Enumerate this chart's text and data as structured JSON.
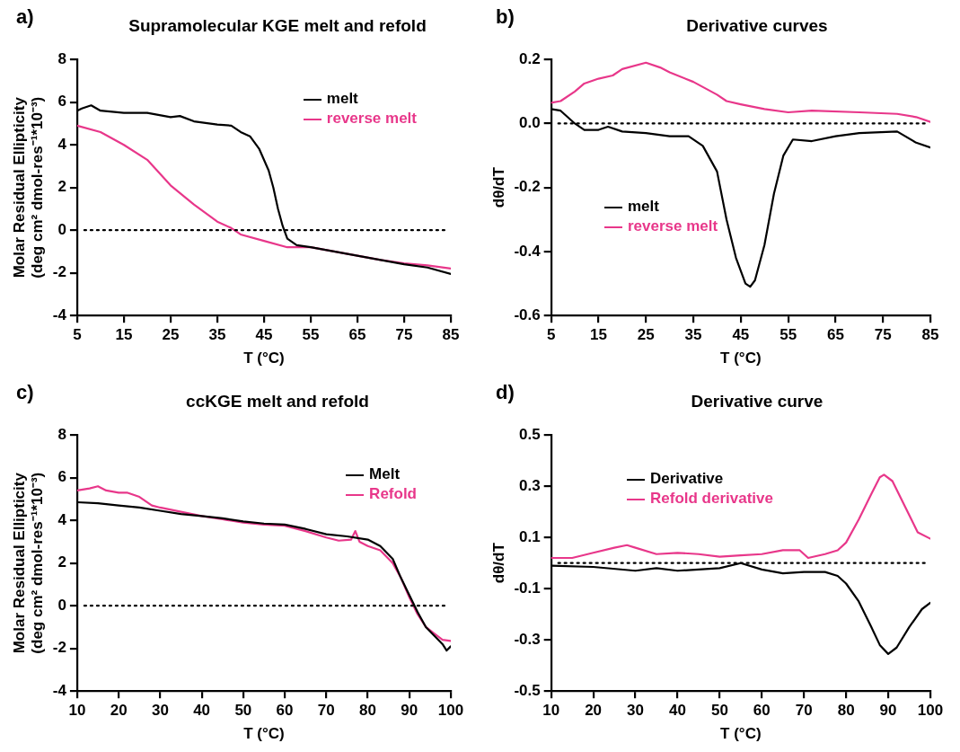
{
  "chart_data": [
    {
      "type": "line",
      "title": "Supramolecular KGE melt and refold",
      "xlabel": "T (°C)",
      "ylabel": "Molar Residual Ellipticity\n(deg cm² dmol-res⁻¹*10⁻³)",
      "annotations": [
        "a)"
      ],
      "xlim": [
        5,
        85
      ],
      "xticks": [
        5,
        15,
        25,
        35,
        45,
        55,
        65,
        75,
        85
      ],
      "ylim": [
        -4,
        8
      ],
      "yticks": [
        -4,
        -2,
        0,
        2,
        4,
        6,
        8
      ],
      "grid": false,
      "legend": "top right",
      "marker": "none",
      "line_style": "solid",
      "ref_lines": [
        {
          "axis": "y",
          "value": 0,
          "color": "#000000",
          "line_style": "dotted"
        }
      ],
      "series": [
        {
          "name": "melt",
          "color": "#000000",
          "x": [
            5,
            6,
            8,
            10,
            15,
            20,
            25,
            27,
            30,
            35,
            38,
            40,
            42,
            44,
            46,
            47,
            48,
            49,
            50,
            52,
            55,
            60,
            65,
            70,
            75,
            80,
            85
          ],
          "values": [
            5.6,
            5.7,
            5.85,
            5.6,
            5.5,
            5.5,
            5.3,
            5.35,
            5.1,
            4.95,
            4.9,
            4.6,
            4.4,
            3.8,
            2.8,
            2.0,
            1.0,
            0.2,
            -0.4,
            -0.7,
            -0.8,
            -1.0,
            -1.2,
            -1.4,
            -1.6,
            -1.75,
            -2.05
          ]
        },
        {
          "name": "reverse melt",
          "color": "#e8378a",
          "x": [
            5,
            10,
            15,
            20,
            25,
            30,
            35,
            38,
            40,
            45,
            50,
            55,
            60,
            65,
            70,
            75,
            80,
            85
          ],
          "values": [
            4.9,
            4.6,
            4.0,
            3.3,
            2.1,
            1.2,
            0.4,
            0.1,
            -0.2,
            -0.5,
            -0.8,
            -0.8,
            -1.0,
            -1.2,
            -1.4,
            -1.55,
            -1.65,
            -1.8
          ]
        }
      ]
    },
    {
      "type": "line",
      "title": "Derivative curves",
      "xlabel": "T (°C)",
      "ylabel": "dθ/dT",
      "annotations": [
        "b)"
      ],
      "xlim": [
        5,
        85
      ],
      "xticks": [
        5,
        15,
        25,
        35,
        45,
        55,
        65,
        75,
        85
      ],
      "ylim": [
        -0.6,
        0.2
      ],
      "yticks": [
        -0.6,
        -0.4,
        -0.2,
        {
          "value": 0,
          "label": "0.0"
        },
        0.2
      ],
      "grid": false,
      "legend": "left",
      "marker": "none",
      "line_style": "solid",
      "ref_lines": [
        {
          "axis": "y",
          "value": 0,
          "color": "#000000",
          "line_style": "dotted"
        }
      ],
      "series": [
        {
          "name": "melt",
          "color": "#000000",
          "x": [
            5,
            7,
            10,
            12,
            15,
            17,
            20,
            25,
            30,
            34,
            37,
            40,
            42,
            44,
            46,
            47,
            48,
            50,
            52,
            54,
            56,
            60,
            65,
            70,
            78,
            82,
            85
          ],
          "values": [
            0.045,
            0.04,
            0.0,
            -0.02,
            -0.02,
            -0.01,
            -0.025,
            -0.03,
            -0.04,
            -0.04,
            -0.07,
            -0.15,
            -0.3,
            -0.42,
            -0.5,
            -0.51,
            -0.49,
            -0.38,
            -0.22,
            -0.1,
            -0.05,
            -0.055,
            -0.04,
            -0.03,
            -0.025,
            -0.06,
            -0.075
          ]
        },
        {
          "name": "reverse melt",
          "color": "#e8378a",
          "x": [
            5,
            7,
            10,
            12,
            15,
            18,
            20,
            25,
            28,
            30,
            35,
            40,
            42,
            45,
            50,
            55,
            60,
            70,
            78,
            82,
            85
          ],
          "values": [
            0.065,
            0.07,
            0.1,
            0.125,
            0.14,
            0.15,
            0.17,
            0.19,
            0.175,
            0.16,
            0.13,
            0.09,
            0.07,
            0.06,
            0.045,
            0.035,
            0.04,
            0.035,
            0.03,
            0.02,
            0.005
          ]
        }
      ]
    },
    {
      "type": "line",
      "title": "ccKGE melt and refold",
      "xlabel": "T (°C)",
      "ylabel": "Molar Residual Ellipticity\n(deg cm² dmol-res⁻¹*10⁻³)",
      "annotations": [
        "c)"
      ],
      "xlim": [
        10,
        100
      ],
      "xticks": [
        10,
        20,
        30,
        40,
        50,
        60,
        70,
        80,
        90,
        100
      ],
      "ylim": [
        -4,
        8
      ],
      "yticks": [
        -4,
        -2,
        0,
        2,
        4,
        6,
        8
      ],
      "grid": false,
      "legend": "top right",
      "marker": "none",
      "line_style": "solid",
      "ref_lines": [
        {
          "axis": "y",
          "value": 0,
          "color": "#000000",
          "line_style": "dotted"
        }
      ],
      "series": [
        {
          "name": "Melt",
          "color": "#000000",
          "x": [
            10,
            15,
            20,
            25,
            30,
            35,
            40,
            45,
            50,
            55,
            60,
            65,
            70,
            75,
            80,
            83,
            86,
            88,
            90,
            92,
            94,
            96,
            98,
            99,
            100
          ],
          "values": [
            4.85,
            4.8,
            4.7,
            4.6,
            4.45,
            4.3,
            4.2,
            4.1,
            3.95,
            3.85,
            3.8,
            3.6,
            3.35,
            3.25,
            3.1,
            2.8,
            2.2,
            1.3,
            0.5,
            -0.3,
            -1.0,
            -1.4,
            -1.8,
            -2.1,
            -1.9
          ]
        },
        {
          "name": "Refold",
          "color": "#e8378a",
          "x": [
            10,
            13,
            15,
            17,
            20,
            22,
            25,
            28,
            30,
            35,
            40,
            45,
            50,
            55,
            60,
            65,
            70,
            73,
            76,
            77,
            78,
            80,
            83,
            86,
            88,
            90,
            92,
            94,
            96,
            98,
            100
          ],
          "values": [
            5.4,
            5.5,
            5.6,
            5.4,
            5.3,
            5.3,
            5.1,
            4.7,
            4.6,
            4.4,
            4.2,
            4.05,
            3.9,
            3.8,
            3.75,
            3.5,
            3.2,
            3.05,
            3.1,
            3.5,
            3.0,
            2.8,
            2.6,
            2.0,
            1.3,
            0.4,
            -0.4,
            -1.0,
            -1.3,
            -1.6,
            -1.65
          ]
        }
      ]
    },
    {
      "type": "line",
      "title": "Derivative curve",
      "xlabel": "T (°C)",
      "ylabel": "dθ/dT",
      "annotations": [
        "d)"
      ],
      "xlim": [
        10,
        100
      ],
      "xticks": [
        10,
        20,
        30,
        40,
        50,
        60,
        70,
        80,
        90,
        100
      ],
      "ylim": [
        -0.5,
        0.5
      ],
      "yticks": [
        -0.5,
        -0.3,
        -0.1,
        0.1,
        0.3,
        0.5
      ],
      "grid": false,
      "legend": "top left",
      "marker": "none",
      "line_style": "solid",
      "ref_lines": [
        {
          "axis": "y",
          "value": 0,
          "color": "#000000",
          "line_style": "dotted"
        }
      ],
      "series": [
        {
          "name": "Derivative",
          "color": "#000000",
          "x": [
            10,
            20,
            30,
            35,
            40,
            50,
            55,
            60,
            65,
            70,
            75,
            78,
            80,
            83,
            86,
            88,
            90,
            92,
            95,
            98,
            100
          ],
          "values": [
            -0.01,
            -0.015,
            -0.03,
            -0.02,
            -0.03,
            -0.02,
            0.0,
            -0.025,
            -0.04,
            -0.035,
            -0.035,
            -0.05,
            -0.08,
            -0.15,
            -0.25,
            -0.32,
            -0.355,
            -0.33,
            -0.25,
            -0.18,
            -0.155
          ]
        },
        {
          "name": "Refold derivative",
          "color": "#e8378a",
          "x": [
            10,
            15,
            20,
            25,
            28,
            30,
            35,
            40,
            45,
            50,
            55,
            60,
            65,
            69,
            71,
            75,
            78,
            80,
            83,
            86,
            88,
            89,
            91,
            94,
            97,
            100
          ],
          "values": [
            0.02,
            0.02,
            0.04,
            0.06,
            0.07,
            0.06,
            0.035,
            0.04,
            0.035,
            0.025,
            0.03,
            0.035,
            0.05,
            0.05,
            0.02,
            0.035,
            0.05,
            0.08,
            0.17,
            0.27,
            0.335,
            0.345,
            0.32,
            0.22,
            0.12,
            0.095
          ]
        }
      ]
    }
  ]
}
